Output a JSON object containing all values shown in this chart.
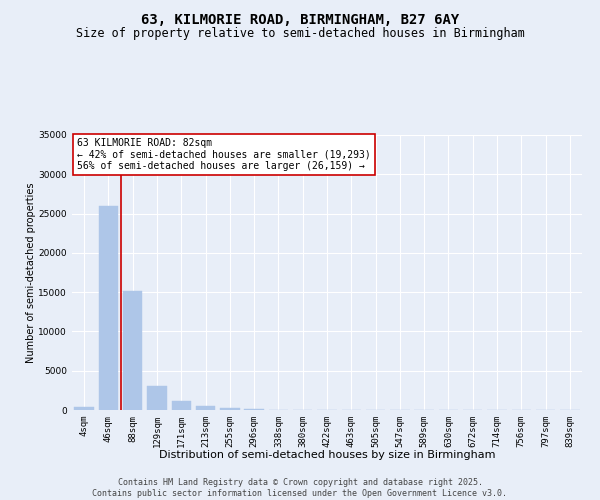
{
  "title": "63, KILMORIE ROAD, BIRMINGHAM, B27 6AY",
  "subtitle": "Size of property relative to semi-detached houses in Birmingham",
  "xlabel": "Distribution of semi-detached houses by size in Birmingham",
  "ylabel": "Number of semi-detached properties",
  "categories": [
    "4sqm",
    "46sqm",
    "88sqm",
    "129sqm",
    "171sqm",
    "213sqm",
    "255sqm",
    "296sqm",
    "338sqm",
    "380sqm",
    "422sqm",
    "463sqm",
    "505sqm",
    "547sqm",
    "589sqm",
    "630sqm",
    "672sqm",
    "714sqm",
    "756sqm",
    "797sqm",
    "839sqm"
  ],
  "values": [
    400,
    26000,
    15100,
    3000,
    1200,
    500,
    200,
    100,
    0,
    0,
    0,
    0,
    0,
    0,
    0,
    0,
    0,
    0,
    0,
    0,
    0
  ],
  "bar_color": "#aec6e8",
  "bar_edge_color": "#aec6e8",
  "vline_color": "#cc0000",
  "vline_x_index": 2,
  "annotation_text": "63 KILMORIE ROAD: 82sqm\n← 42% of semi-detached houses are smaller (19,293)\n56% of semi-detached houses are larger (26,159) →",
  "annotation_box_color": "#ffffff",
  "annotation_box_edge": "#cc0000",
  "ylim": [
    0,
    35000
  ],
  "yticks": [
    0,
    5000,
    10000,
    15000,
    20000,
    25000,
    30000,
    35000
  ],
  "bg_color": "#e8eef8",
  "plot_bg_color": "#e8eef8",
  "footer": "Contains HM Land Registry data © Crown copyright and database right 2025.\nContains public sector information licensed under the Open Government Licence v3.0.",
  "title_fontsize": 10,
  "subtitle_fontsize": 8.5,
  "xlabel_fontsize": 8,
  "ylabel_fontsize": 7,
  "tick_fontsize": 6.5,
  "annotation_fontsize": 7,
  "footer_fontsize": 6
}
